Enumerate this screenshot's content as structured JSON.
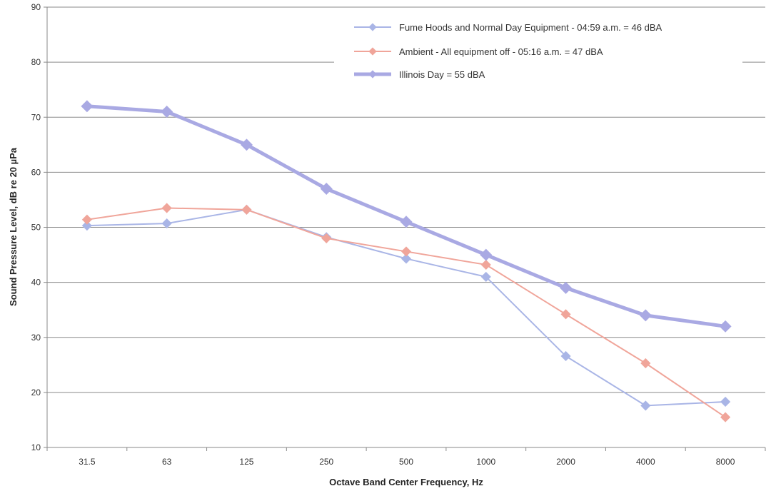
{
  "chart_data": {
    "type": "line",
    "title": "",
    "xlabel": "Octave Band Center Frequency, Hz",
    "ylabel": "Sound Pressure Level, dB re 20 µPa",
    "categories": [
      "31.5",
      "63",
      "125",
      "250",
      "500",
      "1000",
      "2000",
      "4000",
      "8000"
    ],
    "ylim": [
      10,
      90
    ],
    "yticks": [
      10,
      20,
      30,
      40,
      50,
      60,
      70,
      80,
      90
    ],
    "grid": "horizontal",
    "legend_position": "top-right",
    "series": [
      {
        "name": "Fume Hoods and Normal Day Equipment - 04:59 a.m. = 46 dBA",
        "color": "#a9b5e6",
        "values": [
          50.3,
          50.7,
          53.2,
          48.2,
          44.3,
          41.0,
          26.6,
          17.6,
          18.3
        ]
      },
      {
        "name": "Ambient - All equipment off - 05:16 a.m. = 47 dBA",
        "color": "#f0a59a",
        "values": [
          51.4,
          53.5,
          53.2,
          48.0,
          45.6,
          43.2,
          34.2,
          25.3,
          15.5
        ]
      },
      {
        "name": "Illinois Day = 55 dBA",
        "color": "#a9a9e3",
        "values": [
          72,
          71,
          65,
          57,
          51,
          45,
          39,
          34,
          32
        ]
      }
    ]
  }
}
